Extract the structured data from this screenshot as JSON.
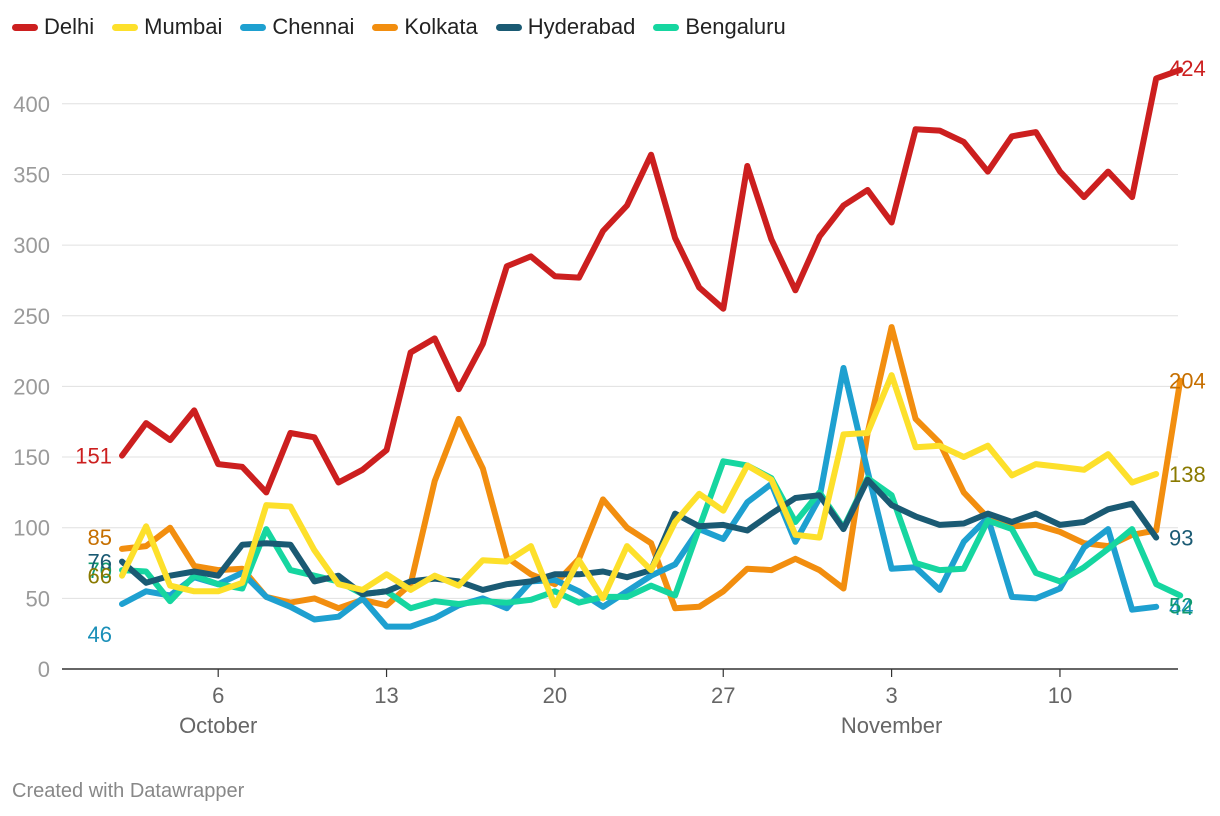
{
  "chart_data": {
    "type": "line",
    "title": "",
    "xlabel": "",
    "ylabel": "",
    "ylim": [
      0,
      424
    ],
    "yticks": [
      0,
      50,
      100,
      150,
      200,
      250,
      300,
      350,
      400
    ],
    "grid": true,
    "legend_position": "top-left",
    "x_start": "Oct 2",
    "x_tick_labels": [
      {
        "day_index": 4,
        "label": "6",
        "month": "October"
      },
      {
        "day_index": 11,
        "label": "13",
        "month": ""
      },
      {
        "day_index": 18,
        "label": "20",
        "month": ""
      },
      {
        "day_index": 25,
        "label": "27",
        "month": ""
      },
      {
        "day_index": 32,
        "label": "3",
        "month": "November"
      },
      {
        "day_index": 39,
        "label": "10",
        "month": ""
      }
    ],
    "series": [
      {
        "name": "Kolkata",
        "color": "#f28e0f",
        "label_color": "#c66f00",
        "values": [
          85,
          87,
          100,
          73,
          70,
          71,
          51,
          47,
          50,
          43,
          49,
          45,
          60,
          133,
          177,
          142,
          79,
          67,
          60,
          78,
          120,
          100,
          89,
          43,
          44,
          55,
          71,
          70,
          78,
          70,
          57,
          167,
          242,
          177,
          160,
          125,
          107,
          101,
          102,
          97,
          89,
          87,
          95,
          98,
          204
        ],
        "start_label": "85",
        "end_label": "204"
      },
      {
        "name": "Chennai",
        "color": "#1ea0d0",
        "label_color": "#1a8fb8",
        "values": [
          46,
          55,
          52,
          65,
          60,
          68,
          51,
          44,
          35,
          37,
          50,
          30,
          30,
          36,
          45,
          50,
          43,
          62,
          63,
          55,
          44,
          55,
          66,
          74,
          99,
          92,
          118,
          131,
          90,
          121,
          213,
          140,
          71,
          72,
          56,
          90,
          107,
          51,
          50,
          57,
          86,
          99,
          42,
          44
        ],
        "start_label": "46",
        "end_label": "44"
      },
      {
        "name": "Bengaluru",
        "color": "#16d6a0",
        "label_color": "#0f9a6e",
        "values": [
          70,
          69,
          48,
          66,
          60,
          57,
          99,
          70,
          66,
          62,
          53,
          55,
          43,
          48,
          46,
          48,
          47,
          49,
          55,
          47,
          51,
          51,
          59,
          52,
          100,
          147,
          144,
          135,
          104,
          125,
          100,
          135,
          123,
          75,
          70,
          71,
          105,
          99,
          68,
          62,
          72,
          85,
          99,
          60,
          52
        ],
        "start_label": "70",
        "end_label": "52"
      },
      {
        "name": "Hyderabad",
        "color": "#1a5a73",
        "label_color": "#1a5a73",
        "values": [
          76,
          61,
          66,
          69,
          66,
          88,
          89,
          88,
          62,
          66,
          53,
          55,
          62,
          64,
          62,
          56,
          60,
          62,
          67,
          67,
          69,
          65,
          70,
          110,
          101,
          102,
          98,
          110,
          121,
          123,
          99,
          134,
          116,
          108,
          102,
          103,
          110,
          104,
          110,
          102,
          104,
          113,
          117,
          93
        ],
        "start_label": "76",
        "end_label": "93"
      },
      {
        "name": "Mumbai",
        "color": "#fde02b",
        "label_color": "#8a7a00",
        "values": [
          66,
          101,
          59,
          55,
          55,
          61,
          116,
          115,
          84,
          60,
          56,
          67,
          56,
          66,
          59,
          77,
          76,
          87,
          45,
          77,
          50,
          87,
          70,
          104,
          124,
          112,
          144,
          134,
          95,
          93,
          166,
          167,
          208,
          157,
          158,
          150,
          158,
          137,
          145,
          143,
          141,
          152,
          132,
          138
        ],
        "start_label": "66",
        "end_label": "138"
      },
      {
        "name": "Delhi",
        "color": "#cc1f1f",
        "label_color": "#cc1f1f",
        "values": [
          151,
          174,
          162,
          183,
          145,
          143,
          125,
          167,
          164,
          132,
          141,
          155,
          224,
          234,
          198,
          230,
          285,
          292,
          278,
          277,
          310,
          328,
          364,
          305,
          270,
          255,
          356,
          304,
          268,
          306,
          328,
          339,
          316,
          382,
          381,
          373,
          352,
          377,
          380,
          352,
          334,
          352,
          334,
          418,
          424
        ],
        "start_label": "151",
        "end_label": "424"
      }
    ],
    "legend_order": [
      "Delhi",
      "Mumbai",
      "Chennai",
      "Kolkata",
      "Hyderabad",
      "Bengaluru"
    ]
  },
  "footer": {
    "credit": "Created with Datawrapper"
  }
}
